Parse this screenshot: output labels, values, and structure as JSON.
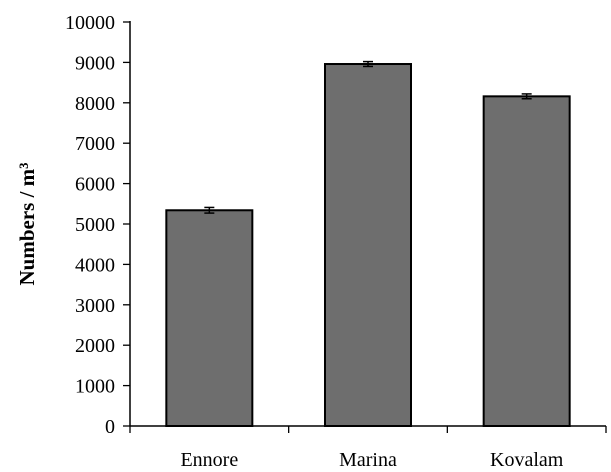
{
  "chart_data": {
    "type": "bar",
    "title": "",
    "xlabel": "",
    "ylabel": "Numbers / m³",
    "categories": [
      "Ennore",
      "Marina",
      "Kovalam"
    ],
    "values": [
      5340,
      8960,
      8160
    ],
    "errors": [
      70,
      60,
      60
    ],
    "ylim": [
      0,
      10000
    ],
    "yticks": [
      0,
      1000,
      2000,
      3000,
      4000,
      5000,
      6000,
      7000,
      8000,
      9000,
      10000
    ],
    "grid": false,
    "legend": "none",
    "bar_color": "#6e6e6e",
    "bar_edge_color": "#000000",
    "error_bars": true
  }
}
